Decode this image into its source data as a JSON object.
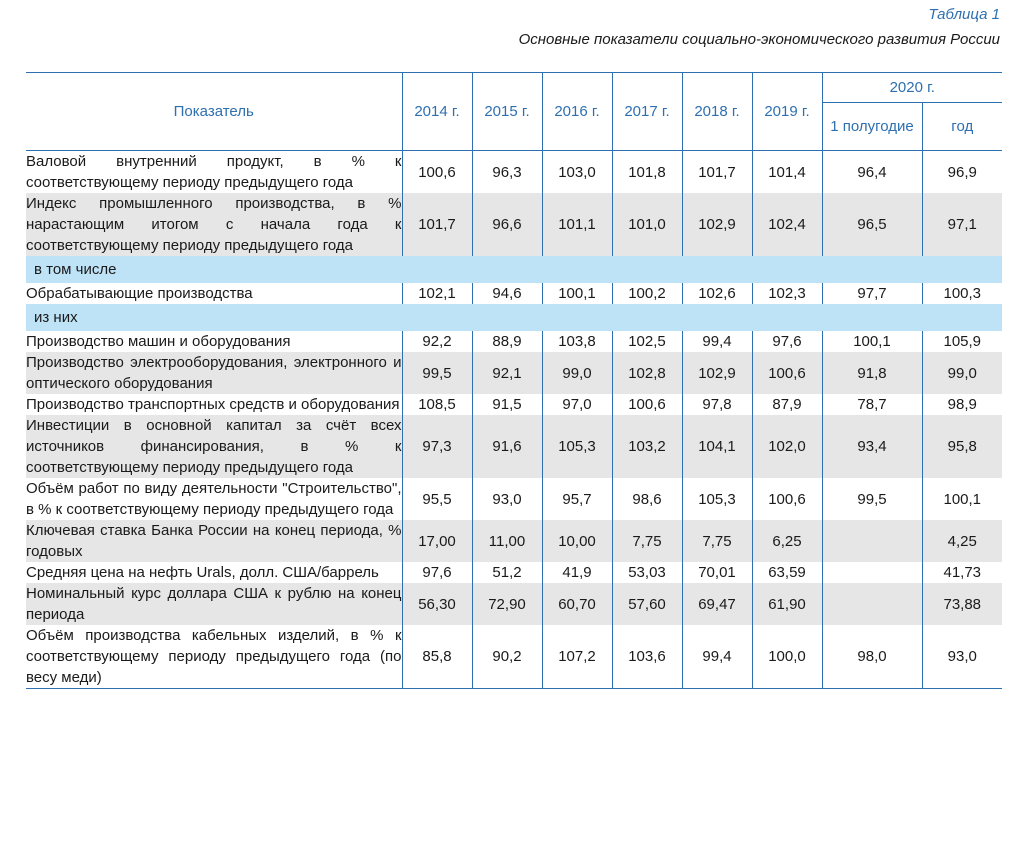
{
  "caption": {
    "number": "Таблица 1",
    "title": "Основные показатели социально-экономического развития России"
  },
  "header": {
    "indicator": "Показатель",
    "years": [
      "2014 г.",
      "2015 г.",
      "2016 г.",
      "2017 г.",
      "2018 г.",
      "2019 г."
    ],
    "group_2020": "2020 г.",
    "sub_half": "1 полугодие",
    "sub_year": "год"
  },
  "rows": [
    {
      "kind": "data",
      "shade": false,
      "label": "Валовой внутренний продукт, в % к соответствующему периоду предыдущего года",
      "values": [
        "100,6",
        "96,3",
        "103,0",
        "101,8",
        "101,7",
        "101,4",
        "96,4",
        "96,9"
      ]
    },
    {
      "kind": "data",
      "shade": true,
      "label": "Индекс промышленного производства, в % нарастающим итогом с начала года к соответствующему периоду предыдущего года",
      "values": [
        "101,7",
        "96,6",
        "101,1",
        "101,0",
        "102,9",
        "102,4",
        "96,5",
        "97,1"
      ]
    },
    {
      "kind": "section",
      "label": "в том числе"
    },
    {
      "kind": "data",
      "shade": false,
      "label": "Обрабатывающие производства",
      "values": [
        "102,1",
        "94,6",
        "100,1",
        "100,2",
        "102,6",
        "102,3",
        "97,7",
        "100,3"
      ]
    },
    {
      "kind": "section",
      "label": "из них"
    },
    {
      "kind": "data",
      "shade": false,
      "label": "Производство машин и оборудования",
      "values": [
        "92,2",
        "88,9",
        "103,8",
        "102,5",
        "99,4",
        "97,6",
        "100,1",
        "105,9"
      ]
    },
    {
      "kind": "data",
      "shade": true,
      "label": "Производство электрооборудования, электронного и оптического оборудования",
      "values": [
        "99,5",
        "92,1",
        "99,0",
        "102,8",
        "102,9",
        "100,6",
        "91,8",
        "99,0"
      ]
    },
    {
      "kind": "data",
      "shade": false,
      "label": "Производство транспортных средств и оборудования",
      "values": [
        "108,5",
        "91,5",
        "97,0",
        "100,6",
        "97,8",
        "87,9",
        "78,7",
        "98,9"
      ]
    },
    {
      "kind": "data",
      "shade": true,
      "label": "Инвестиции в основной капитал за счёт всех источников финансирования, в % к соответствующему периоду предыдущего года",
      "values": [
        "97,3",
        "91,6",
        "105,3",
        "103,2",
        "104,1",
        "102,0",
        "93,4",
        "95,8"
      ]
    },
    {
      "kind": "data",
      "shade": false,
      "label": "Объём работ по виду деятельности \"Строительство\", в % к соответствующему периоду предыдущего года",
      "values": [
        "95,5",
        "93,0",
        "95,7",
        "98,6",
        "105,3",
        "100,6",
        "99,5",
        "100,1"
      ]
    },
    {
      "kind": "data",
      "shade": true,
      "label": "Ключевая ставка Банка России на конец периода, % годовых",
      "values": [
        "17,00",
        "11,00",
        "10,00",
        "7,75",
        "7,75",
        "6,25",
        "",
        "4,25"
      ]
    },
    {
      "kind": "data",
      "shade": false,
      "label": "Средняя цена на нефть Urals, долл. США/баррель",
      "values": [
        "97,6",
        "51,2",
        "41,9",
        "53,03",
        "70,01",
        "63,59",
        "",
        "41,73"
      ]
    },
    {
      "kind": "data",
      "shade": true,
      "label": "Номинальный курс доллара США к рублю на конец периода",
      "values": [
        "56,30",
        "72,90",
        "60,70",
        "57,60",
        "69,47",
        "61,90",
        "",
        "73,88"
      ]
    },
    {
      "kind": "data",
      "shade": false,
      "label": "Объём производства кабельных изделий, в % к соответствующему периоду предыдущего года (по весу меди)",
      "values": [
        "85,8",
        "90,2",
        "107,2",
        "103,6",
        "99,4",
        "100,0",
        "98,0",
        "93,0"
      ]
    }
  ]
}
